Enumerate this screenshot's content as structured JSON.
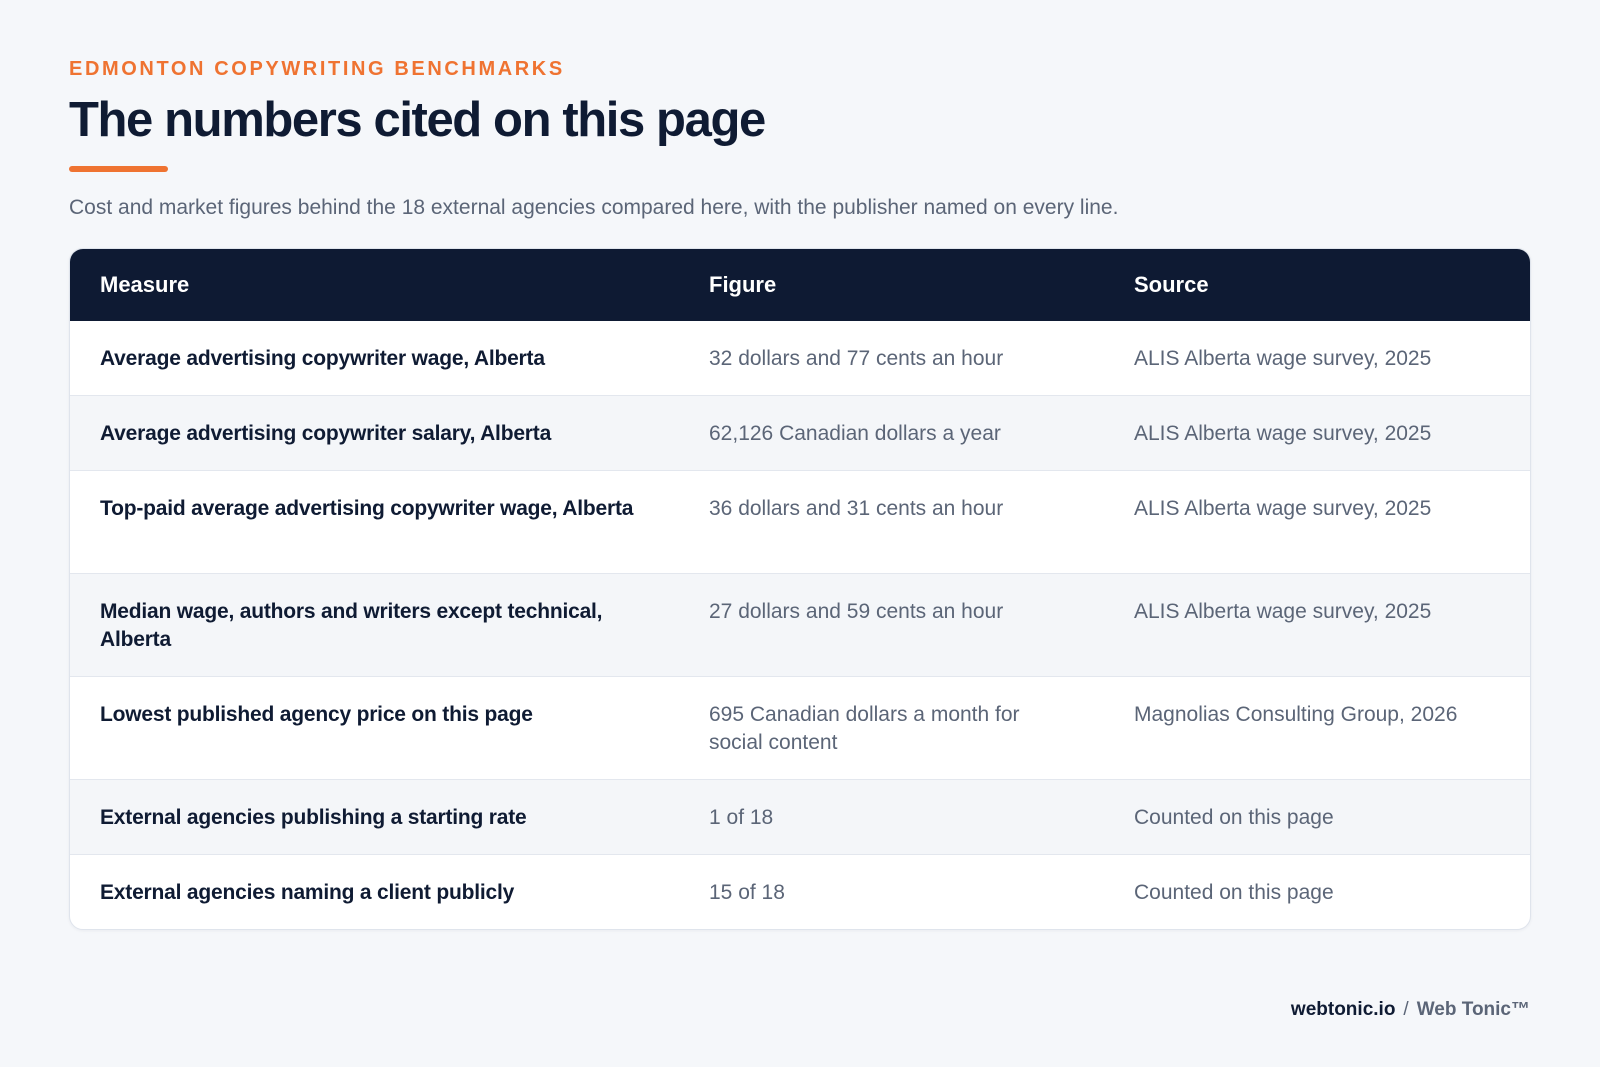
{
  "eyebrow": "EDMONTON COPYWRITING BENCHMARKS",
  "title": "The numbers cited on this page",
  "subtitle": "Cost and market figures behind the 18 external agencies compared here, with the publisher named on every line.",
  "table": {
    "headers": {
      "measure": "Measure",
      "figure": "Figure",
      "source": "Source"
    },
    "rows": [
      {
        "measure": "Average advertising copywriter wage, Alberta",
        "figure": "32 dollars and 77 cents an hour",
        "source": "ALIS Alberta wage survey, 2025"
      },
      {
        "measure": "Average advertising copywriter salary, Alberta",
        "figure": "62,126 Canadian dollars a year",
        "source": "ALIS Alberta wage survey, 2025"
      },
      {
        "measure": "Top-paid average advertising copywriter wage, Alberta",
        "figure": "36 dollars and 31 cents an hour",
        "source": "ALIS Alberta wage survey, 2025"
      },
      {
        "measure": "Median wage, authors and writers except technical, Alberta",
        "figure": "27 dollars and 59 cents an hour",
        "source": "ALIS Alberta wage survey, 2025"
      },
      {
        "measure": "Lowest published agency price on this page",
        "figure": "695 Canadian dollars a month for social content",
        "source": "Magnolias Consulting Group, 2026"
      },
      {
        "measure": "External agencies publishing a starting rate",
        "figure": "1 of 18",
        "source": "Counted on this page"
      },
      {
        "measure": "External agencies naming a client publicly",
        "figure": "15 of 18",
        "source": "Counted on this page"
      }
    ]
  },
  "footer": {
    "domain": "webtonic.io",
    "separator": "/",
    "brand": "Web Tonic™"
  },
  "colors": {
    "accent": "#ef7331",
    "header_bg": "#0e1a33",
    "text_dark": "#0f1b33",
    "text_muted": "#5b6577",
    "page_bg": "#f5f7fa"
  }
}
